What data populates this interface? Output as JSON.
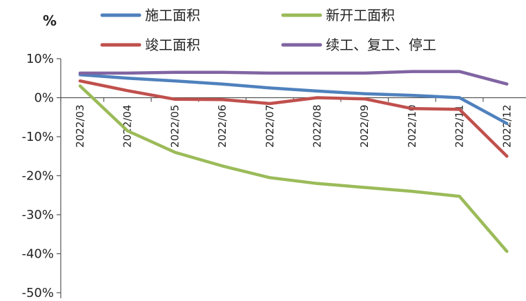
{
  "chart_data": {
    "type": "line",
    "y_unit": "%",
    "categories": [
      "2022/03",
      "2022/04",
      "2022/05",
      "2022/06",
      "2022/07",
      "2022/08",
      "2022/09",
      "2022/10",
      "2022/11",
      "2022/12"
    ],
    "ylim": [
      -50,
      10
    ],
    "yticks": [
      10,
      0,
      -10,
      -20,
      -30,
      -40,
      -50
    ],
    "ytick_labels": [
      "10%",
      "0%",
      "-10%",
      "-20%",
      "-30%",
      "-40%",
      "-50%"
    ],
    "legend_position": "top",
    "series": [
      {
        "name": "施工面积",
        "color": "#4F81BD",
        "values": [
          5.9,
          5.0,
          4.3,
          3.5,
          2.5,
          1.7,
          1.0,
          0.6,
          0.0,
          -6.6
        ]
      },
      {
        "name": "新开工面积",
        "color": "#9BBB59",
        "values": [
          3.0,
          -8.5,
          -14.0,
          -17.5,
          -20.5,
          -22.0,
          -23.0,
          -24.0,
          -25.3,
          -39.4
        ]
      },
      {
        "name": "竣工面积",
        "color": "#C0504D",
        "values": [
          4.3,
          1.8,
          -0.4,
          -0.5,
          -1.5,
          0.0,
          -0.3,
          -2.8,
          -3.0,
          -15.0
        ]
      },
      {
        "name": "续工、复工、停工",
        "color": "#8064A2",
        "values": [
          6.3,
          6.3,
          6.5,
          6.5,
          6.3,
          6.3,
          6.3,
          6.7,
          6.7,
          3.5
        ]
      }
    ]
  }
}
